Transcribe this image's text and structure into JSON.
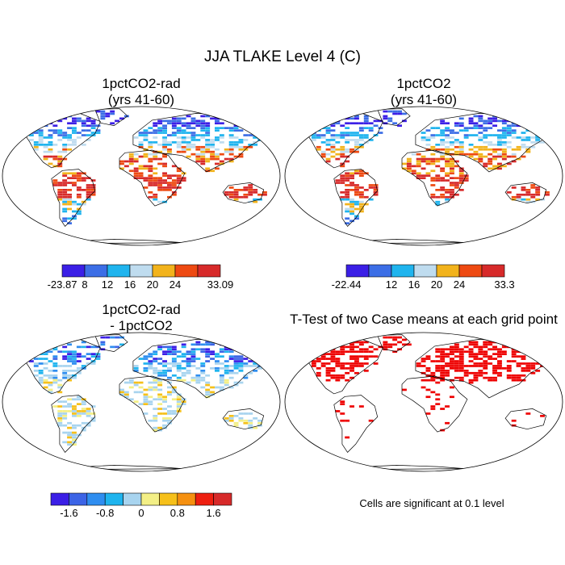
{
  "figure": {
    "title": "JJA TLAKE Level 4 (C)",
    "note": "Cells are significant at 0.1 level"
  },
  "colors": {
    "land_outline": "#000000",
    "significant": "#ee0000"
  },
  "chart_data": [
    {
      "type": "heatmap",
      "name": "panel-1pctCO2-rad",
      "title_lines": [
        "1pctCO2-rad",
        "(yrs 41-60)"
      ],
      "colorbar": {
        "colors": [
          "#3b1fe6",
          "#3c6ee6",
          "#1fb4ee",
          "#bfdcef",
          "#f2b31c",
          "#ee4a12",
          "#d72a2a"
        ],
        "labels": [
          "-23.87",
          "8",
          "12",
          "16",
          "20",
          "24",
          "33.09"
        ]
      }
    },
    {
      "type": "heatmap",
      "name": "panel-1pctCO2",
      "title_lines": [
        "1pctCO2",
        "(yrs 41-60)"
      ],
      "colorbar": {
        "colors": [
          "#3b1fe6",
          "#3c6ee6",
          "#1fb4ee",
          "#bfdcef",
          "#f2b31c",
          "#ee4a12",
          "#d72a2a"
        ],
        "labels": [
          "-22.44",
          "12",
          "16",
          "20",
          "24",
          "33.3"
        ]
      }
    },
    {
      "type": "heatmap",
      "name": "panel-difference",
      "title_lines": [
        "1pctCO2-rad",
        "- 1pctCO2"
      ],
      "colorbar": {
        "colors": [
          "#3b1fe6",
          "#3c64e6",
          "#2f8ef0",
          "#1fb4ee",
          "#a8d4ef",
          "#f3ef86",
          "#f6c01a",
          "#f59010",
          "#ee1f10",
          "#d72a2a"
        ],
        "labels": [
          "-1.6",
          "-0.8",
          "0",
          "0.8",
          "1.6"
        ]
      }
    },
    {
      "type": "heatmap",
      "name": "panel-ttest",
      "title_lines": [
        "T-Test of two Case means at each grid point"
      ]
    }
  ]
}
